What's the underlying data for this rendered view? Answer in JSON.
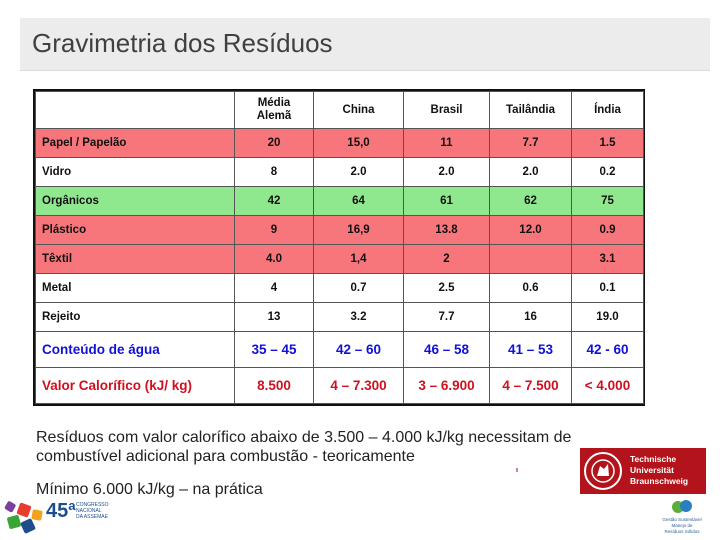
{
  "header": {
    "title": "Gravimetria dos Resíduos"
  },
  "table": {
    "columns": [
      "",
      "Média Alemã",
      "China",
      "Brasil",
      "Tailândia",
      "Índia"
    ],
    "rows": [
      {
        "style": "red",
        "label": "Papel / Papelão",
        "values": [
          "20",
          "15,0",
          "11",
          "7.7",
          "1.5"
        ]
      },
      {
        "style": "white",
        "label": "Vidro",
        "values": [
          "8",
          "2.0",
          "2.0",
          "2.0",
          "0.2"
        ]
      },
      {
        "style": "green",
        "label": "Orgânicos",
        "values": [
          "42",
          "64",
          "61",
          "62",
          "75"
        ]
      },
      {
        "style": "red",
        "label": "Plástico",
        "values": [
          "9",
          "16,9",
          "13.8",
          "12.0",
          "0.9"
        ]
      },
      {
        "style": "red",
        "label": "Têxtil",
        "values": [
          "4.0",
          "1,4",
          "2",
          "",
          "3.1"
        ]
      },
      {
        "style": "white",
        "label": "Metal",
        "values": [
          "4",
          "0.7",
          "2.5",
          "0.6",
          "0.1"
        ]
      },
      {
        "style": "white",
        "label": "Rejeito",
        "values": [
          "13",
          "3.2",
          "7.7",
          "16",
          "19.0"
        ]
      },
      {
        "style": "blue",
        "label": "Conteúdo de água",
        "values": [
          "35 – 45",
          "42 – 60",
          "46 – 58",
          "41 – 53",
          "42 - 60"
        ]
      },
      {
        "style": "orange",
        "label": "Valor Calorífico (kJ/ kg)",
        "values": [
          "8.500",
          "4 – 7.300",
          "3 – 6.900",
          "4 – 7.500",
          "< 4.000"
        ]
      }
    ]
  },
  "notes": {
    "line1": "Resíduos com valor calorífico abaixo de 3.500 – 4.000 kJ/kg necessitam de",
    "line2": "combustível adicional para combustão - teoricamente",
    "line3": "Mínimo 6.000 kJ/kg – na prática"
  },
  "logos": {
    "tu": {
      "lines": [
        "Technische",
        "Universität",
        "Braunschweig"
      ],
      "color": "#b3131b"
    },
    "event": {
      "number": "45ª",
      "lines": [
        "CONGRESSO",
        "NACIONAL",
        "DA ASSEMAE"
      ]
    },
    "mini": {
      "lines": [
        "Gestão Sustentável",
        "Manejo de",
        "Resíduos Sólidos"
      ]
    }
  }
}
